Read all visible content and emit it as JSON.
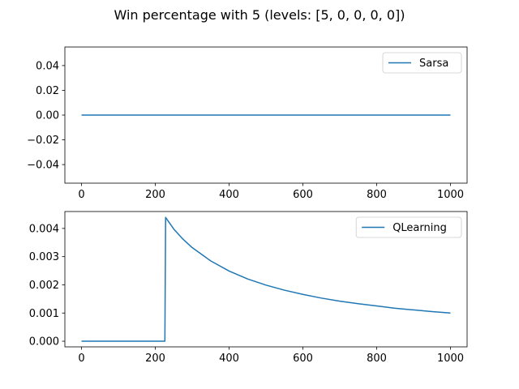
{
  "figure": {
    "title": "Win percentage with 5 (levels: [5, 0, 0, 0, 0])"
  },
  "colors": {
    "series": "#1f77b4",
    "frame": "#000000",
    "background": "#ffffff"
  },
  "chart_data": [
    {
      "type": "line",
      "title": "",
      "xlabel": "",
      "ylabel": "",
      "xlim": [
        -45,
        1045
      ],
      "ylim": [
        -0.055,
        0.055
      ],
      "xticks": [
        0,
        200,
        400,
        600,
        800,
        1000
      ],
      "xtick_labels": [
        "0",
        "200",
        "400",
        "600",
        "800",
        "1000"
      ],
      "yticks": [
        -0.04,
        -0.02,
        0.0,
        0.02,
        0.04
      ],
      "ytick_labels": [
        "−0.04",
        "−0.02",
        "0.00",
        "0.02",
        "0.04"
      ],
      "grid": false,
      "legend": "top-right",
      "series": [
        {
          "name": "Sarsa",
          "x": [
            0,
            1000
          ],
          "y": [
            0.0,
            0.0
          ]
        }
      ]
    },
    {
      "type": "line",
      "title": "",
      "xlabel": "",
      "ylabel": "",
      "xlim": [
        -45,
        1045
      ],
      "ylim": [
        -0.0002,
        0.0046
      ],
      "xticks": [
        0,
        200,
        400,
        600,
        800,
        1000
      ],
      "xtick_labels": [
        "0",
        "200",
        "400",
        "600",
        "800",
        "1000"
      ],
      "yticks": [
        0.0,
        0.001,
        0.002,
        0.003,
        0.004
      ],
      "ytick_labels": [
        "0.000",
        "0.001",
        "0.002",
        "0.003",
        "0.004"
      ],
      "grid": false,
      "legend": "top-right",
      "series": [
        {
          "name": "QLearning",
          "x": [
            0,
            100,
            200,
            226,
            228,
            250,
            275,
            300,
            350,
            400,
            450,
            500,
            550,
            600,
            650,
            700,
            750,
            800,
            850,
            900,
            950,
            1000
          ],
          "y": [
            0.0,
            0.0,
            0.0,
            0.0,
            0.00439,
            0.00398,
            0.00362,
            0.00332,
            0.00285,
            0.00249,
            0.00221,
            0.00199,
            0.00181,
            0.00166,
            0.00153,
            0.00142,
            0.00133,
            0.00125,
            0.00117,
            0.00111,
            0.00105,
            0.001
          ]
        }
      ]
    }
  ]
}
